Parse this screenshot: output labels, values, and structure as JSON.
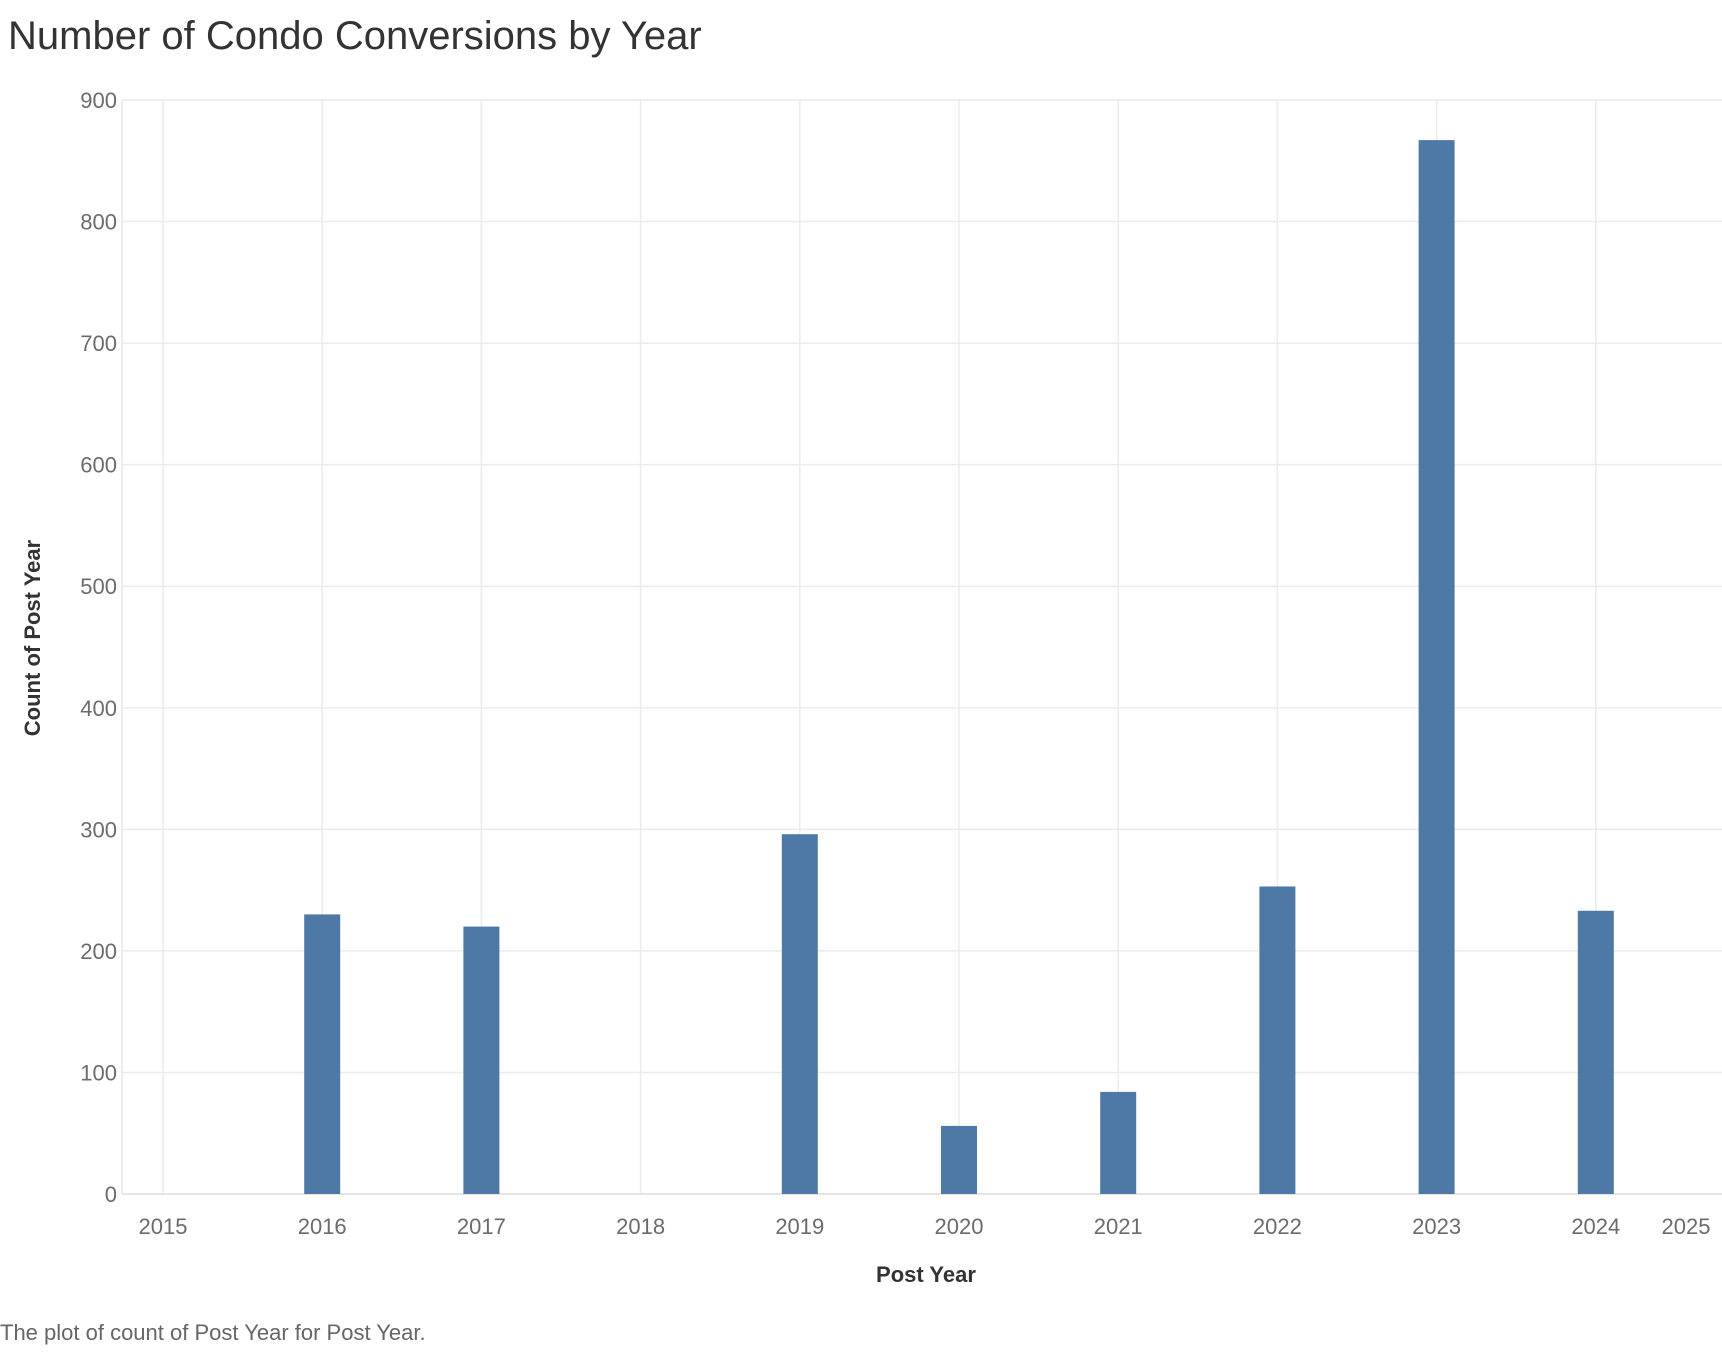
{
  "chart_data": {
    "type": "bar",
    "title": "Number of Condo Conversions by Year",
    "xlabel": "Post Year",
    "ylabel": "Count of Post Year",
    "x_ticks": [
      "2015",
      "2016",
      "2017",
      "2018",
      "2019",
      "2020",
      "2021",
      "2022",
      "2023",
      "2024",
      "2025"
    ],
    "y_ticks": [
      "0",
      "100",
      "200",
      "300",
      "400",
      "500",
      "600",
      "700",
      "800",
      "900"
    ],
    "xlim": [
      2015,
      2025
    ],
    "ylim": [
      0,
      900
    ],
    "categories": [
      "2016",
      "2017",
      "2019",
      "2020",
      "2021",
      "2022",
      "2023",
      "2024"
    ],
    "x": [
      2016,
      2017,
      2019,
      2020,
      2021,
      2022,
      2023,
      2024
    ],
    "values": [
      230,
      220,
      296,
      56,
      84,
      253,
      867,
      233
    ],
    "bar_color": "#4e79a7",
    "grid": true,
    "caption": "The plot of count of Post Year for Post Year."
  }
}
